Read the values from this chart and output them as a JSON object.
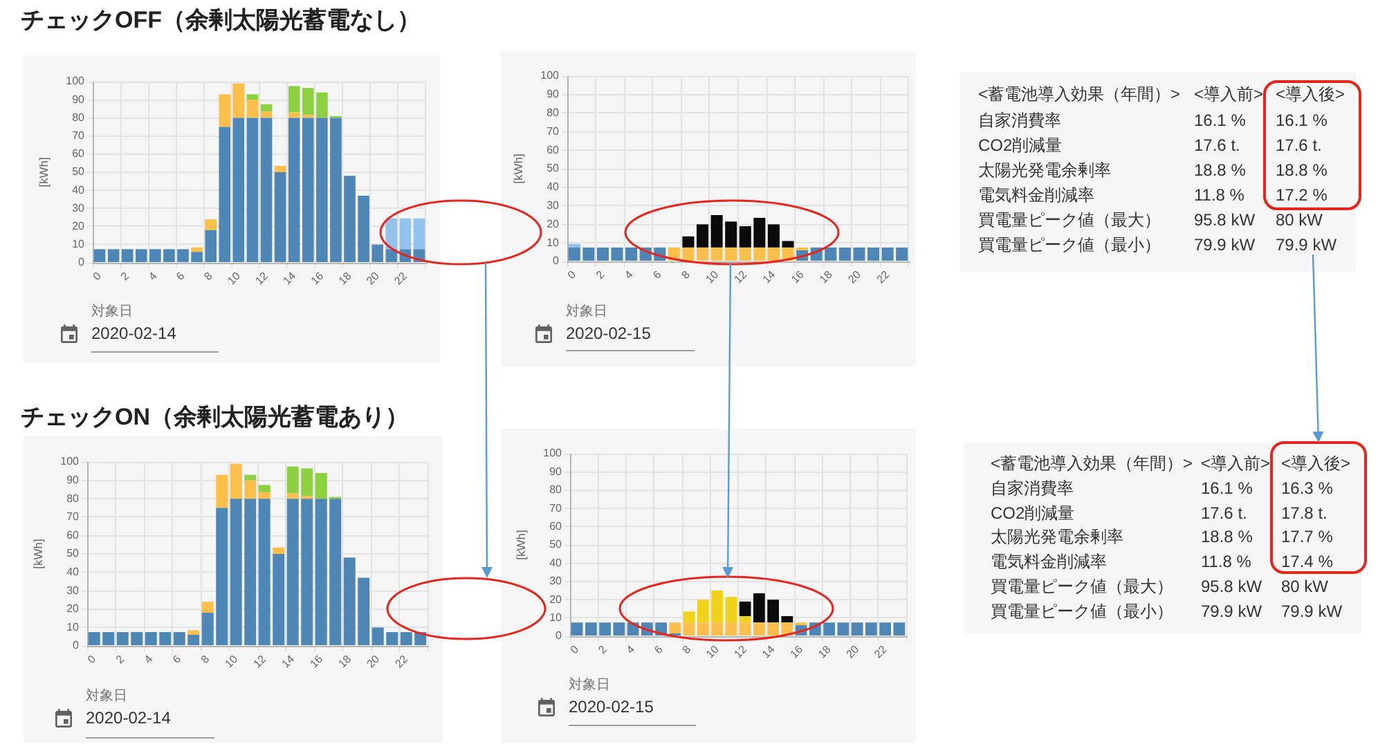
{
  "chart_data": [
    {
      "type": "bar",
      "title": "チェックOFF（余剰太陽光蓄電なし）",
      "ylabel": "[kWh]",
      "stacked": true,
      "grid": true,
      "ylim": [
        0,
        100
      ],
      "yticks": [
        0,
        10,
        20,
        30,
        40,
        50,
        60,
        70,
        80,
        90,
        100
      ],
      "categories": [
        "0",
        null,
        "2",
        null,
        "4",
        null,
        "6",
        null,
        "8",
        null,
        "10",
        null,
        "12",
        null,
        "14",
        null,
        "16",
        null,
        "18",
        null,
        "20",
        null,
        "22",
        null
      ],
      "series": [
        {
          "color": "#4e86b6",
          "values": [
            7.5,
            7.5,
            7.5,
            7.5,
            7.5,
            7.5,
            7.5,
            6,
            18,
            75,
            80,
            80,
            80,
            50,
            80,
            80,
            80,
            80,
            48,
            37,
            10,
            7.5,
            7.5,
            7.5
          ]
        },
        {
          "color": "#fcbf4b",
          "values": [
            null,
            null,
            null,
            null,
            null,
            null,
            null,
            2.5,
            6,
            18,
            19,
            10,
            3.5,
            3.5,
            3,
            1.5,
            null,
            null,
            null,
            null,
            null,
            null,
            null,
            null
          ]
        },
        {
          "color": "#8ed140",
          "values": [
            null,
            null,
            null,
            null,
            null,
            null,
            null,
            null,
            null,
            null,
            null,
            3,
            4,
            null,
            14.5,
            15,
            14,
            1,
            null,
            null,
            null,
            null,
            null,
            null
          ]
        },
        {
          "color": "#93c2ec",
          "values": [
            null,
            null,
            null,
            null,
            null,
            null,
            null,
            null,
            null,
            null,
            null,
            null,
            null,
            null,
            null,
            null,
            null,
            null,
            null,
            null,
            null,
            17,
            17,
            17
          ]
        }
      ],
      "annotations": [
        "対象日",
        "2020-02-14"
      ]
    },
    {
      "type": "bar",
      "ylabel": "[kWh]",
      "stacked": true,
      "grid": true,
      "ylim": [
        0,
        100
      ],
      "yticks": [
        0,
        10,
        20,
        30,
        40,
        50,
        60,
        70,
        80,
        90,
        100
      ],
      "categories": [
        "0",
        null,
        "2",
        null,
        "4",
        null,
        "6",
        null,
        "8",
        null,
        "10",
        null,
        "12",
        null,
        "14",
        null,
        "16",
        null,
        "18",
        null,
        "20",
        null,
        "22",
        null
      ],
      "series": [
        {
          "color": "#4e86b6",
          "values": [
            7.5,
            7.5,
            7.5,
            7.5,
            7.5,
            7.5,
            7.5,
            null,
            null,
            null,
            null,
            null,
            null,
            null,
            null,
            null,
            6,
            7.5,
            7.5,
            7.5,
            7.5,
            7.5,
            7.5,
            7.5
          ]
        },
        {
          "color": "#fcbf4b",
          "values": [
            null,
            null,
            null,
            null,
            null,
            null,
            null,
            7.5,
            7.5,
            7.5,
            7.5,
            7.5,
            7.5,
            7.5,
            7.5,
            7.5,
            1.5,
            null,
            null,
            null,
            null,
            null,
            null,
            null
          ]
        },
        {
          "color": "#93c2ec",
          "values": [
            2,
            null,
            null,
            null,
            null,
            null,
            null,
            null,
            null,
            null,
            null,
            null,
            null,
            null,
            null,
            null,
            null,
            null,
            null,
            null,
            null,
            null,
            null,
            null
          ]
        },
        {
          "color": "#0a0a0a",
          "values": [
            null,
            null,
            null,
            null,
            null,
            null,
            null,
            null,
            6,
            12.5,
            17.5,
            14,
            11.5,
            16,
            12.5,
            3.5,
            null,
            null,
            null,
            null,
            null,
            null,
            null,
            null
          ]
        }
      ],
      "annotations": [
        "対象日",
        "2020-02-15"
      ]
    },
    {
      "type": "other",
      "annotations": [
        "<蓄電池導入効果（年間）>",
        "<導入前>",
        "<導入後>",
        "自家消費率",
        "16.1 %",
        "16.1 %",
        "CO2削減量",
        "17.6 t.",
        "17.6 t.",
        "太陽光発電余剰率",
        "18.8 %",
        "18.8 %",
        "電気料金削減率",
        "11.8 %",
        "17.2 %",
        "買電量ピーク値（最大）",
        "95.8 kW",
        "80 kW",
        "買電量ピーク値（最小）",
        "79.9 kW",
        "79.9 kW"
      ]
    },
    {
      "type": "bar",
      "title": "チェックON（余剰太陽光蓄電あり）",
      "ylabel": "[kWh]",
      "stacked": true,
      "grid": true,
      "ylim": [
        0,
        100
      ],
      "yticks": [
        0,
        10,
        20,
        30,
        40,
        50,
        60,
        70,
        80,
        90,
        100
      ],
      "categories": [
        "0",
        null,
        "2",
        null,
        "4",
        null,
        "6",
        null,
        "8",
        null,
        "10",
        null,
        "12",
        null,
        "14",
        null,
        "16",
        null,
        "18",
        null,
        "20",
        null,
        "22",
        null
      ],
      "series": [
        {
          "color": "#4e86b6",
          "values": [
            7.5,
            7.5,
            7.5,
            7.5,
            7.5,
            7.5,
            7.5,
            6,
            18,
            75,
            80,
            80,
            80,
            50,
            80,
            80,
            80,
            80,
            48,
            37,
            10,
            7.5,
            7.5,
            7.5
          ]
        },
        {
          "color": "#fcbf4b",
          "values": [
            null,
            null,
            null,
            null,
            null,
            null,
            null,
            2.5,
            6,
            18,
            19,
            10,
            3.5,
            3.5,
            3,
            1.5,
            null,
            null,
            null,
            null,
            null,
            null,
            null,
            null
          ]
        },
        {
          "color": "#8ed140",
          "values": [
            null,
            null,
            null,
            null,
            null,
            null,
            null,
            null,
            null,
            null,
            null,
            3,
            4,
            null,
            14.5,
            15,
            14,
            1,
            null,
            null,
            null,
            null,
            null,
            null
          ]
        }
      ],
      "annotations": [
        "対象日",
        "2020-02-14"
      ]
    },
    {
      "type": "bar",
      "ylabel": "[kWh]",
      "stacked": true,
      "grid": true,
      "ylim": [
        0,
        100
      ],
      "yticks": [
        0,
        10,
        20,
        30,
        40,
        50,
        60,
        70,
        80,
        90,
        100
      ],
      "categories": [
        "0",
        null,
        "2",
        null,
        "4",
        null,
        "6",
        null,
        "8",
        null,
        "10",
        null,
        "12",
        null,
        "14",
        null,
        "16",
        null,
        "18",
        null,
        "20",
        null,
        "22",
        null
      ],
      "series": [
        {
          "color": "#4e86b6",
          "values": [
            7.5,
            7.5,
            7.5,
            7.5,
            7.5,
            7.5,
            7.5,
            1.5,
            null,
            null,
            null,
            null,
            null,
            null,
            null,
            null,
            6,
            7.5,
            7.5,
            7.5,
            7.5,
            7.5,
            7.5,
            7.5
          ]
        },
        {
          "color": "#fcbf4b",
          "values": [
            null,
            null,
            null,
            null,
            null,
            null,
            null,
            6,
            7.5,
            7.5,
            7.5,
            7.5,
            7.5,
            7.5,
            7.5,
            7.5,
            1.5,
            null,
            null,
            null,
            null,
            null,
            null,
            null
          ]
        },
        {
          "color": "#f0d21c",
          "values": [
            null,
            null,
            null,
            null,
            null,
            null,
            null,
            null,
            6,
            12.5,
            17.5,
            14,
            3.5,
            null,
            null,
            null,
            null,
            null,
            null,
            null,
            null,
            null,
            null,
            null
          ]
        },
        {
          "color": "#0a0a0a",
          "values": [
            null,
            null,
            null,
            null,
            null,
            null,
            null,
            null,
            null,
            null,
            null,
            null,
            8,
            16,
            12.5,
            3.5,
            null,
            null,
            null,
            null,
            null,
            null,
            null,
            null
          ]
        }
      ],
      "annotations": [
        "対象日",
        "2020-02-15"
      ]
    },
    {
      "type": "other",
      "annotations": [
        "<蓄電池導入効果（年間）>",
        "<導入前>",
        "<導入後>",
        "自家消費率",
        "16.1 %",
        "16.3 %",
        "CO2削減量",
        "17.6 t.",
        "17.8 t.",
        "太陽光発電余剰率",
        "18.8 %",
        "17.7 %",
        "電気料金削減率",
        "11.8 %",
        "17.4 %",
        "買電量ピーク値（最大）",
        "95.8 kW",
        "80 kW",
        "買電量ピーク値（最小）",
        "79.9 kW",
        "79.9 kW"
      ]
    }
  ]
}
